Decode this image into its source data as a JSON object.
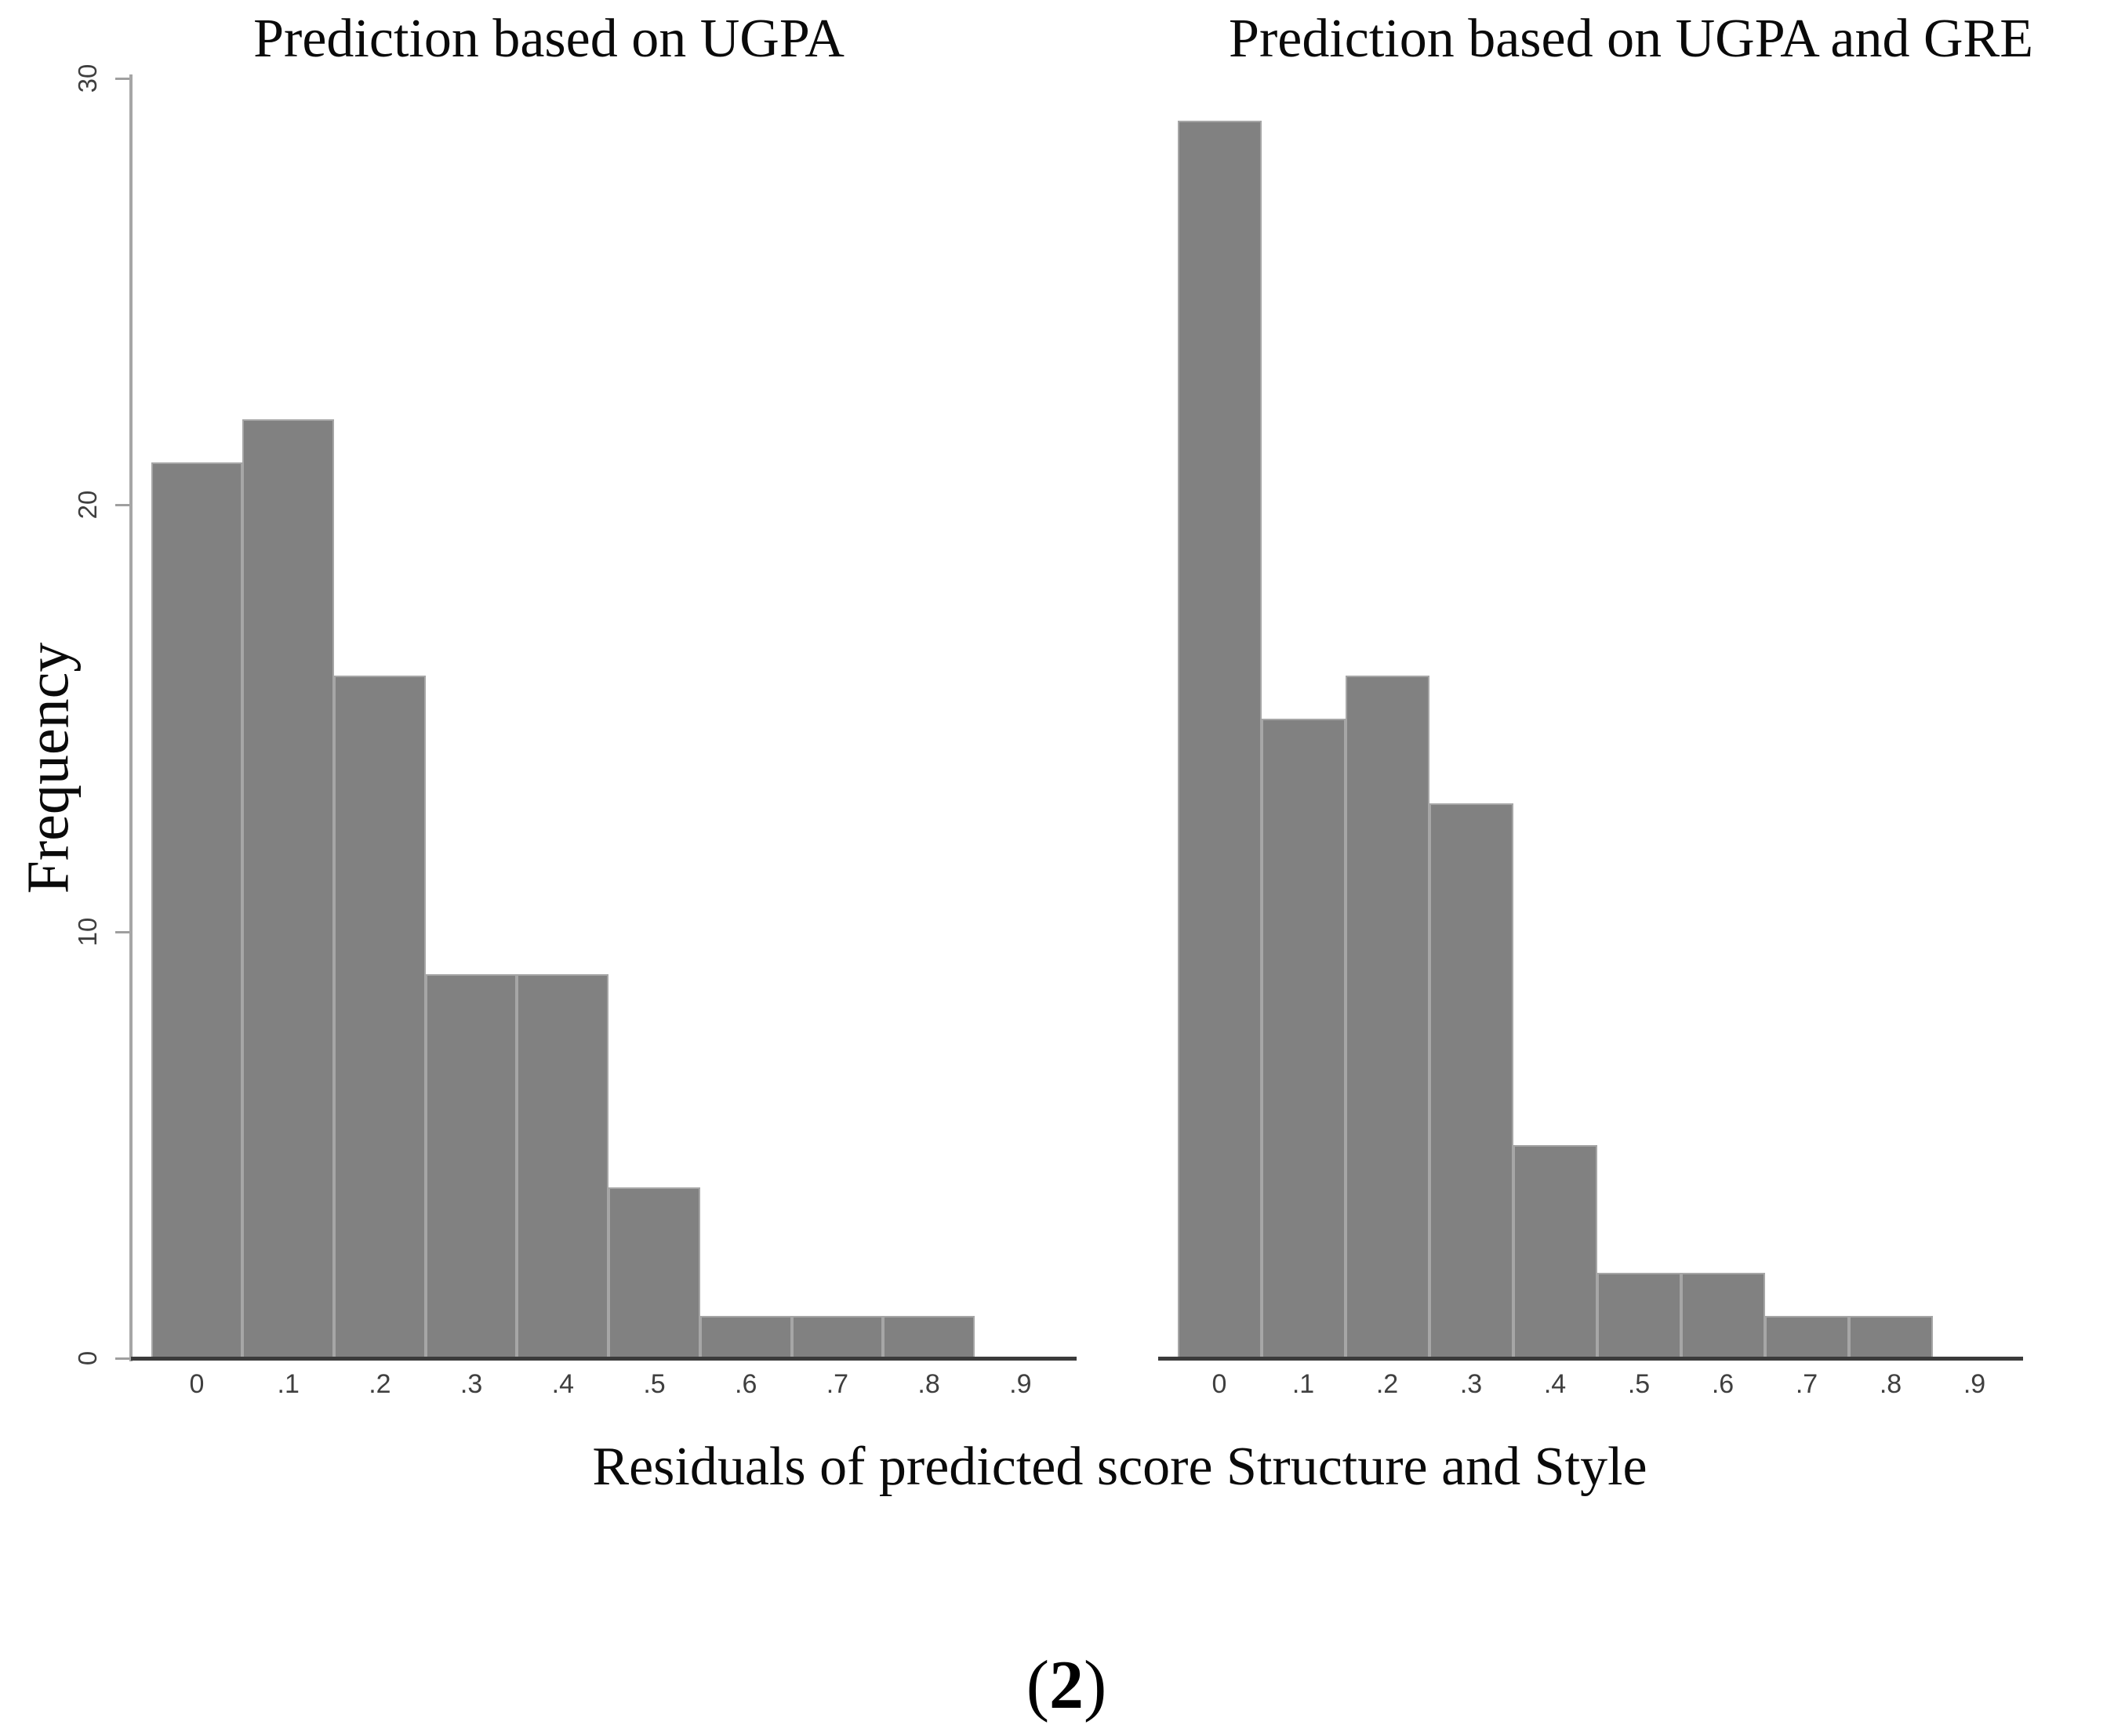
{
  "figure": {
    "ylabel": "Frequency",
    "xlabel": "Residuals of predicted score Structure and Style",
    "caption": {
      "open": "(",
      "number": "2",
      "close": ")"
    }
  },
  "colors": {
    "bar_fill": "#818181",
    "bar_outline": "#a6a6a6",
    "x_axis_line": "#3b3b3b",
    "y_axis_line": "#a6a6a6",
    "tick_text": "#3f3f3f",
    "label_text": "#0a0a0a"
  },
  "chart_data": [
    {
      "type": "bar",
      "title": "Prediction based on UGPA",
      "categories": [
        "0",
        ".1",
        ".2",
        ".3",
        ".4",
        ".5",
        ".6",
        ".7",
        ".8",
        ".9"
      ],
      "values": [
        21,
        22,
        16,
        9,
        9,
        4,
        1,
        1,
        1,
        0
      ],
      "xlabel": "Residuals of predicted score Structure and Style",
      "ylabel": "Frequency",
      "ylim": [
        0,
        30
      ],
      "yticks": [
        0,
        10,
        20,
        30
      ],
      "bin_width": 0.1,
      "bar_alignment": "centered-on-tick",
      "grid": false,
      "legend": "none"
    },
    {
      "type": "bar",
      "title": "Prediction based on UGPA and GRE",
      "categories": [
        "0",
        ".1",
        ".2",
        ".3",
        ".4",
        ".5",
        ".6",
        ".7",
        ".8",
        ".9"
      ],
      "values": [
        29,
        15,
        16,
        13,
        5,
        2,
        2,
        1,
        1,
        0
      ],
      "xlabel": "Residuals of predicted score Structure and Style",
      "ylabel": "Frequency",
      "ylim": [
        0,
        30
      ],
      "yticks": [
        0,
        10,
        20,
        30
      ],
      "bin_width": 0.1,
      "bar_alignment": "centered-on-tick",
      "grid": false,
      "legend": "none"
    }
  ]
}
